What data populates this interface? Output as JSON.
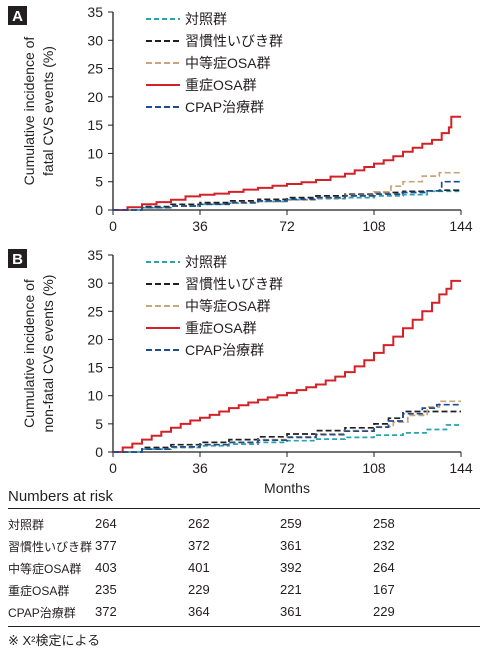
{
  "chart_data": [
    {
      "type": "line",
      "panel_label": "A",
      "ylabel_lines": [
        "Cumulative incidence of",
        "fatal CVS events (%)"
      ],
      "xlabel": "",
      "ylim": [
        0,
        35
      ],
      "yticks": [
        0,
        5,
        10,
        15,
        20,
        25,
        30,
        35
      ],
      "xlim": [
        0,
        144
      ],
      "xticks": [
        0,
        36,
        72,
        108,
        144
      ],
      "grid": false,
      "legend_position": "top-center",
      "step": true,
      "series": [
        {
          "name": "対照群",
          "color": "#2aa3ad",
          "dash": "5,3",
          "x": [
            0,
            12,
            24,
            36,
            48,
            60,
            72,
            84,
            96,
            108,
            120,
            130,
            135,
            144
          ],
          "y": [
            0,
            0.4,
            0.7,
            1.0,
            1.2,
            1.5,
            1.8,
            2.0,
            2.2,
            2.5,
            2.7,
            3.3,
            3.3,
            3.3
          ]
        },
        {
          "name": "習慣性いびき群",
          "color": "#231f20",
          "dash": "6,3",
          "x": [
            0,
            12,
            24,
            36,
            48,
            60,
            72,
            84,
            96,
            108,
            120,
            130,
            135,
            144
          ],
          "y": [
            0,
            0.6,
            1.0,
            1.3,
            1.6,
            1.9,
            2.2,
            2.5,
            2.8,
            3.1,
            3.3,
            3.4,
            3.5,
            3.5
          ]
        },
        {
          "name": "中等症OSA群",
          "color": "#c9a57a",
          "dash": "6,3",
          "x": [
            0,
            12,
            24,
            36,
            48,
            60,
            72,
            84,
            96,
            108,
            115,
            120,
            128,
            135,
            144
          ],
          "y": [
            0,
            0.4,
            0.7,
            1.0,
            1.2,
            1.5,
            1.8,
            2.1,
            2.6,
            3.2,
            4.2,
            5.0,
            6.0,
            6.6,
            6.6
          ]
        },
        {
          "name": "重症OSA群",
          "color": "#d42128",
          "dash": "",
          "x": [
            0,
            6,
            12,
            18,
            24,
            30,
            36,
            42,
            48,
            54,
            60,
            66,
            72,
            78,
            84,
            90,
            96,
            100,
            104,
            108,
            112,
            116,
            120,
            124,
            128,
            132,
            136,
            139,
            140,
            144
          ],
          "y": [
            0,
            0.5,
            1.0,
            1.4,
            1.8,
            2.4,
            2.7,
            2.9,
            3.2,
            3.6,
            3.9,
            4.3,
            4.6,
            4.9,
            5.3,
            5.9,
            6.4,
            7.0,
            7.6,
            8.2,
            8.8,
            9.5,
            10.3,
            11.0,
            11.7,
            12.4,
            13.6,
            14.6,
            16.5,
            16.5
          ]
        },
        {
          "name": "CPAP治療群",
          "color": "#1d4c8f",
          "dash": "6,3",
          "x": [
            0,
            12,
            24,
            36,
            48,
            60,
            72,
            84,
            96,
            108,
            120,
            130,
            136,
            144
          ],
          "y": [
            0,
            0.4,
            0.7,
            1.0,
            1.3,
            1.6,
            1.9,
            2.2,
            2.5,
            2.8,
            3.1,
            3.4,
            5.0,
            5.0
          ]
        }
      ]
    },
    {
      "type": "line",
      "panel_label": "B",
      "ylabel_lines": [
        "Cumulative incidence of",
        "non-fatal CVS events (%)"
      ],
      "xlabel": "Months",
      "ylim": [
        0,
        35
      ],
      "yticks": [
        0,
        5,
        10,
        15,
        20,
        25,
        30,
        35
      ],
      "xlim": [
        0,
        144
      ],
      "xticks": [
        0,
        36,
        72,
        108,
        144
      ],
      "grid": false,
      "legend_position": "top-center",
      "step": true,
      "series": [
        {
          "name": "対照群",
          "color": "#2aa3ad",
          "dash": "5,3",
          "x": [
            0,
            12,
            24,
            36,
            48,
            60,
            72,
            84,
            96,
            108,
            120,
            130,
            138,
            144
          ],
          "y": [
            0,
            0.5,
            0.8,
            1.1,
            1.4,
            1.7,
            2.0,
            2.3,
            2.6,
            3.0,
            3.4,
            4.0,
            4.8,
            4.8
          ]
        },
        {
          "name": "習慣性いびき群",
          "color": "#231f20",
          "dash": "6,3",
          "x": [
            0,
            12,
            24,
            36,
            48,
            60,
            72,
            84,
            96,
            108,
            114,
            120,
            144
          ],
          "y": [
            0,
            0.8,
            1.3,
            1.7,
            2.2,
            2.7,
            3.2,
            3.8,
            4.3,
            5.0,
            6.0,
            7.2,
            7.2
          ]
        },
        {
          "name": "中等症OSA群",
          "color": "#c9a57a",
          "dash": "6,3",
          "x": [
            0,
            12,
            24,
            36,
            48,
            60,
            72,
            84,
            96,
            108,
            116,
            122,
            130,
            135,
            144
          ],
          "y": [
            0,
            0.5,
            0.9,
            1.3,
            1.7,
            2.2,
            2.7,
            3.2,
            3.8,
            4.5,
            5.3,
            6.5,
            8.0,
            9.0,
            9.0
          ]
        },
        {
          "name": "重症OSA群",
          "color": "#d42128",
          "dash": "",
          "x": [
            0,
            4,
            8,
            12,
            16,
            20,
            24,
            28,
            32,
            36,
            40,
            44,
            48,
            52,
            56,
            60,
            64,
            68,
            72,
            76,
            80,
            84,
            88,
            92,
            96,
            100,
            104,
            108,
            112,
            116,
            120,
            124,
            128,
            132,
            135,
            138,
            140,
            144
          ],
          "y": [
            0,
            0.8,
            1.5,
            2.2,
            2.9,
            3.6,
            4.3,
            5.0,
            5.6,
            6.1,
            6.6,
            7.2,
            7.8,
            8.3,
            8.8,
            9.3,
            9.7,
            10.1,
            10.5,
            11.0,
            11.5,
            12.0,
            12.7,
            13.4,
            14.2,
            15.2,
            16.3,
            17.6,
            19.0,
            20.5,
            22.0,
            23.5,
            25.0,
            26.5,
            28.0,
            29.0,
            30.4,
            30.4
          ]
        },
        {
          "name": "CPAP治療群",
          "color": "#1d4c8f",
          "dash": "6,3",
          "x": [
            0,
            12,
            24,
            36,
            48,
            60,
            72,
            84,
            96,
            108,
            114,
            120,
            128,
            134,
            144
          ],
          "y": [
            0,
            0.5,
            0.9,
            1.3,
            1.7,
            2.1,
            2.6,
            3.1,
            3.7,
            4.4,
            5.5,
            6.8,
            7.8,
            8.4,
            8.4
          ]
        }
      ]
    }
  ],
  "risk_table": {
    "title": "Numbers at risk",
    "rows": [
      {
        "label": "対照群",
        "values": [
          "264",
          "262",
          "259",
          "258"
        ]
      },
      {
        "label": "習慣性いびき群",
        "values": [
          "377",
          "372",
          "361",
          "232"
        ]
      },
      {
        "label": "中等症OSA群",
        "values": [
          "403",
          "401",
          "392",
          "264"
        ]
      },
      {
        "label": "重症OSA群",
        "values": [
          "235",
          "229",
          "221",
          "167"
        ]
      },
      {
        "label": "CPAP治療群",
        "values": [
          "372",
          "364",
          "361",
          "229"
        ]
      }
    ]
  },
  "footnote": "※ X²検定による"
}
